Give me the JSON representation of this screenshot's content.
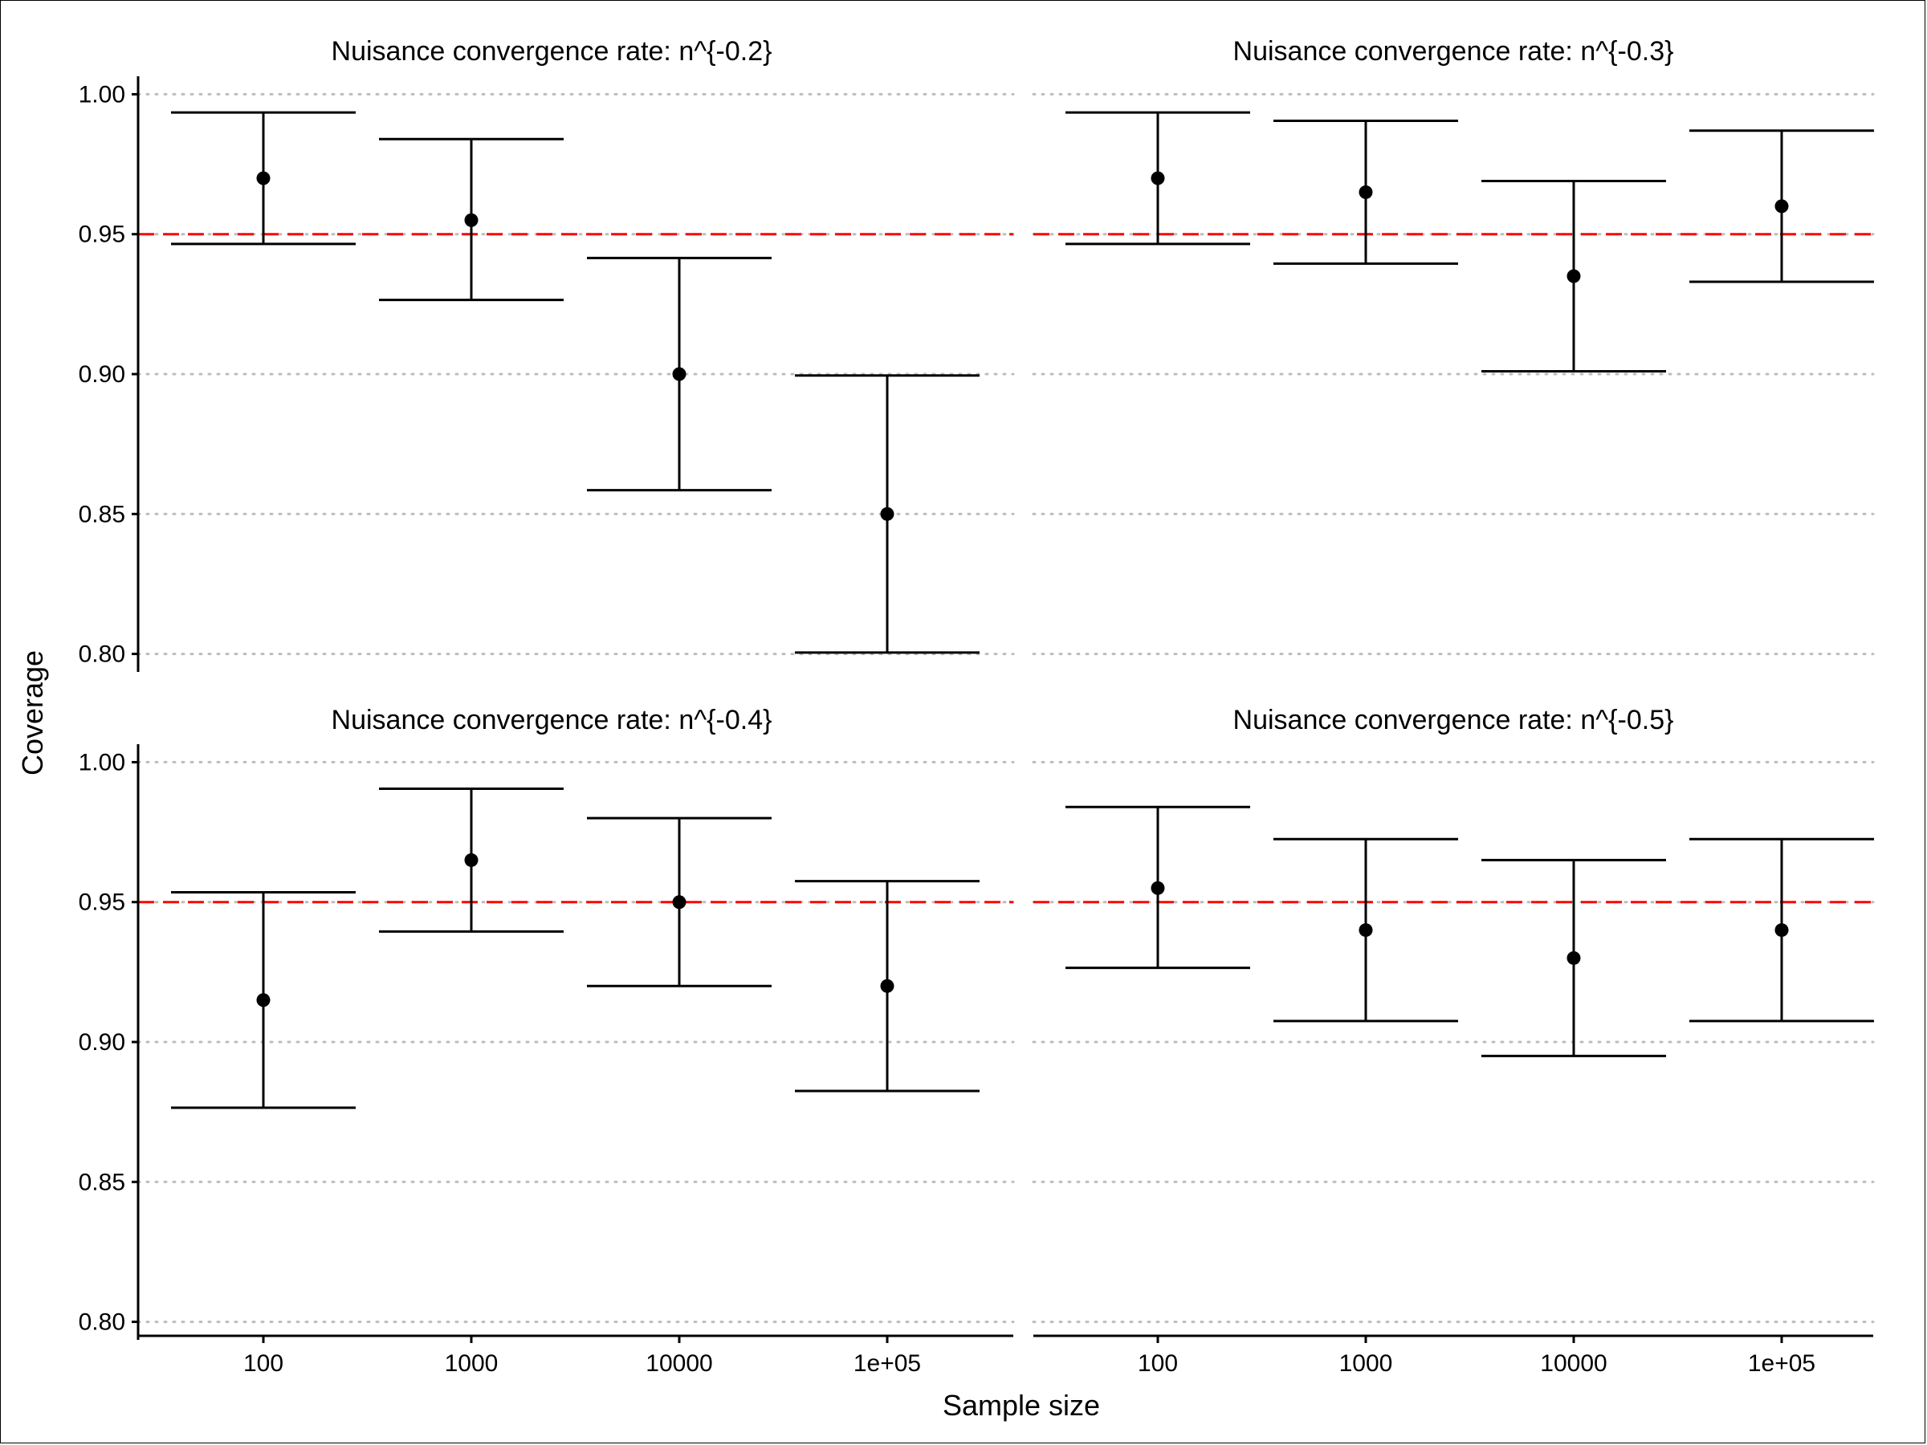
{
  "chart_data": {
    "type": "errorbar-facets",
    "xlabel": "Sample size",
    "ylabel": "Coverage",
    "categories": [
      "100",
      "1000",
      "10000",
      "1e+05"
    ],
    "ylim": [
      0.795,
      1.005
    ],
    "yticks": [
      0.8,
      0.85,
      0.9,
      0.95,
      1.0
    ],
    "ytick_labels": [
      "0.80",
      "0.85",
      "0.90",
      "0.95",
      "1.00"
    ],
    "reference_line": {
      "y": 0.95,
      "color": "#ff0000",
      "style": "dashed"
    },
    "grid": {
      "horizontal": true,
      "style": "dotted",
      "color": "#bdbdbd"
    },
    "point_color": "#000000",
    "panels": [
      {
        "title": "Nuisance convergence rate: n^{-0.2}",
        "points": [
          {
            "x": "100",
            "y": 0.97,
            "lo": 0.9465,
            "hi": 0.9935
          },
          {
            "x": "1000",
            "y": 0.955,
            "lo": 0.9265,
            "hi": 0.984
          },
          {
            "x": "10000",
            "y": 0.9,
            "lo": 0.8585,
            "hi": 0.9415
          },
          {
            "x": "1e+05",
            "y": 0.85,
            "lo": 0.8005,
            "hi": 0.8995
          }
        ]
      },
      {
        "title": "Nuisance convergence rate: n^{-0.3}",
        "points": [
          {
            "x": "100",
            "y": 0.97,
            "lo": 0.9465,
            "hi": 0.9935
          },
          {
            "x": "1000",
            "y": 0.965,
            "lo": 0.9395,
            "hi": 0.9905
          },
          {
            "x": "10000",
            "y": 0.935,
            "lo": 0.901,
            "hi": 0.969
          },
          {
            "x": "1e+05",
            "y": 0.96,
            "lo": 0.933,
            "hi": 0.987
          }
        ]
      },
      {
        "title": "Nuisance convergence rate: n^{-0.4}",
        "points": [
          {
            "x": "100",
            "y": 0.915,
            "lo": 0.8765,
            "hi": 0.9535
          },
          {
            "x": "1000",
            "y": 0.965,
            "lo": 0.9395,
            "hi": 0.9905
          },
          {
            "x": "10000",
            "y": 0.95,
            "lo": 0.92,
            "hi": 0.98
          },
          {
            "x": "1e+05",
            "y": 0.92,
            "lo": 0.8825,
            "hi": 0.9575
          }
        ]
      },
      {
        "title": "Nuisance convergence rate: n^{-0.5}",
        "points": [
          {
            "x": "100",
            "y": 0.955,
            "lo": 0.9265,
            "hi": 0.984
          },
          {
            "x": "1000",
            "y": 0.94,
            "lo": 0.9075,
            "hi": 0.9725
          },
          {
            "x": "10000",
            "y": 0.93,
            "lo": 0.895,
            "hi": 0.965
          },
          {
            "x": "1e+05",
            "y": 0.94,
            "lo": 0.9075,
            "hi": 0.9725
          }
        ]
      }
    ]
  }
}
